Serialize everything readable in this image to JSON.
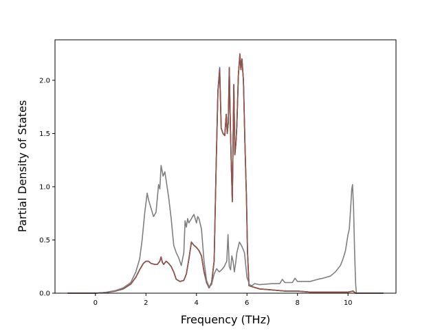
{
  "chart_data": {
    "type": "line",
    "xlabel": "Frequency (THz)",
    "ylabel": "Partial Density of States",
    "xlim": [
      -1.6,
      11.9
    ],
    "ylim": [
      0.0,
      2.38
    ],
    "xticks": [
      0,
      2,
      4,
      6,
      8,
      10
    ],
    "xtick_labels": [
      "0",
      "2",
      "4",
      "6",
      "8",
      "10"
    ],
    "yticks": [
      0.0,
      0.5,
      1.0,
      1.5,
      2.0
    ],
    "ytick_labels": [
      "0.0",
      "0.5",
      "1.0",
      "1.5",
      "2.0"
    ],
    "grid": false,
    "legend": "none",
    "series": [
      {
        "color": "#1f77b4",
        "points": [
          [
            -1.1,
            0
          ],
          [
            0,
            0
          ],
          [
            0.4,
            0.006
          ],
          [
            0.8,
            0.02
          ],
          [
            1.1,
            0.04
          ],
          [
            1.4,
            0.085
          ],
          [
            1.6,
            0.15
          ],
          [
            1.75,
            0.22
          ],
          [
            1.9,
            0.28
          ],
          [
            2.0,
            0.3
          ],
          [
            2.1,
            0.3
          ],
          [
            2.2,
            0.28
          ],
          [
            2.35,
            0.27
          ],
          [
            2.45,
            0.27
          ],
          [
            2.55,
            0.3
          ],
          [
            2.6,
            0.34
          ],
          [
            2.65,
            0.29
          ],
          [
            2.7,
            0.27
          ],
          [
            2.8,
            0.3
          ],
          [
            2.9,
            0.28
          ],
          [
            3.0,
            0.25
          ],
          [
            3.1,
            0.2
          ],
          [
            3.2,
            0.13
          ],
          [
            3.35,
            0.11
          ],
          [
            3.5,
            0.12
          ],
          [
            3.6,
            0.18
          ],
          [
            3.7,
            0.32
          ],
          [
            3.8,
            0.48
          ],
          [
            3.9,
            0.45
          ],
          [
            4.0,
            0.43
          ],
          [
            4.1,
            0.4
          ],
          [
            4.2,
            0.35
          ],
          [
            4.3,
            0.2
          ],
          [
            4.4,
            0.1
          ],
          [
            4.5,
            0.05
          ],
          [
            4.6,
            0.1
          ],
          [
            4.7,
            0.3
          ],
          [
            4.78,
            1.2
          ],
          [
            4.85,
            1.9
          ],
          [
            4.92,
            2.12
          ],
          [
            4.98,
            1.55
          ],
          [
            5.05,
            1.5
          ],
          [
            5.12,
            1.48
          ],
          [
            5.18,
            1.68
          ],
          [
            5.22,
            1.5
          ],
          [
            5.26,
            1.6
          ],
          [
            5.3,
            2.12
          ],
          [
            5.34,
            1.6
          ],
          [
            5.38,
            1.2
          ],
          [
            5.42,
            0.86
          ],
          [
            5.48,
            1.96
          ],
          [
            5.52,
            1.3
          ],
          [
            5.56,
            1.4
          ],
          [
            5.6,
            1.58
          ],
          [
            5.66,
            2.05
          ],
          [
            5.72,
            2.24
          ],
          [
            5.76,
            2.1
          ],
          [
            5.8,
            2.2
          ],
          [
            5.86,
            2.0
          ],
          [
            5.92,
            1.4
          ],
          [
            5.98,
            0.9
          ],
          [
            6.02,
            0.4
          ],
          [
            6.08,
            0.07
          ],
          [
            6.5,
            0.04
          ],
          [
            7.0,
            0.03
          ],
          [
            7.5,
            0.02
          ],
          [
            8.0,
            0.02
          ],
          [
            8.5,
            0.01
          ],
          [
            9.0,
            0.01
          ],
          [
            9.5,
            0.01
          ],
          [
            10.0,
            0.01
          ],
          [
            10.2,
            0.02
          ],
          [
            10.3,
            0
          ],
          [
            11.4,
            0
          ]
        ]
      },
      {
        "color": "#d62728",
        "points": [
          [
            -1.1,
            0
          ],
          [
            0,
            0
          ],
          [
            0.4,
            0.006
          ],
          [
            0.8,
            0.02
          ],
          [
            1.1,
            0.04
          ],
          [
            1.4,
            0.085
          ],
          [
            1.6,
            0.15
          ],
          [
            1.75,
            0.22
          ],
          [
            1.9,
            0.28
          ],
          [
            2.0,
            0.3
          ],
          [
            2.1,
            0.3
          ],
          [
            2.2,
            0.28
          ],
          [
            2.35,
            0.27
          ],
          [
            2.45,
            0.27
          ],
          [
            2.55,
            0.3
          ],
          [
            2.6,
            0.34
          ],
          [
            2.65,
            0.29
          ],
          [
            2.7,
            0.27
          ],
          [
            2.8,
            0.3
          ],
          [
            2.9,
            0.28
          ],
          [
            3.0,
            0.25
          ],
          [
            3.1,
            0.2
          ],
          [
            3.2,
            0.13
          ],
          [
            3.35,
            0.11
          ],
          [
            3.5,
            0.12
          ],
          [
            3.6,
            0.18
          ],
          [
            3.7,
            0.32
          ],
          [
            3.8,
            0.48
          ],
          [
            3.9,
            0.45
          ],
          [
            4.0,
            0.43
          ],
          [
            4.1,
            0.4
          ],
          [
            4.2,
            0.35
          ],
          [
            4.3,
            0.2
          ],
          [
            4.4,
            0.1
          ],
          [
            4.5,
            0.05
          ],
          [
            4.6,
            0.1
          ],
          [
            4.7,
            0.3
          ],
          [
            4.78,
            1.2
          ],
          [
            4.85,
            1.9
          ],
          [
            4.92,
            2.1
          ],
          [
            4.98,
            1.55
          ],
          [
            5.05,
            1.5
          ],
          [
            5.12,
            1.48
          ],
          [
            5.18,
            1.68
          ],
          [
            5.22,
            1.5
          ],
          [
            5.26,
            1.6
          ],
          [
            5.3,
            2.12
          ],
          [
            5.34,
            1.6
          ],
          [
            5.38,
            1.2
          ],
          [
            5.42,
            0.86
          ],
          [
            5.48,
            1.96
          ],
          [
            5.52,
            1.3
          ],
          [
            5.56,
            1.4
          ],
          [
            5.6,
            1.58
          ],
          [
            5.66,
            2.05
          ],
          [
            5.72,
            2.24
          ],
          [
            5.76,
            2.1
          ],
          [
            5.8,
            2.2
          ],
          [
            5.86,
            2.0
          ],
          [
            5.92,
            1.4
          ],
          [
            5.98,
            0.9
          ],
          [
            6.02,
            0.4
          ],
          [
            6.08,
            0.07
          ],
          [
            6.5,
            0.04
          ],
          [
            7.0,
            0.03
          ],
          [
            7.5,
            0.02
          ],
          [
            8.0,
            0.02
          ],
          [
            8.5,
            0.01
          ],
          [
            9.0,
            0.01
          ],
          [
            9.5,
            0.01
          ],
          [
            10.0,
            0.01
          ],
          [
            10.2,
            0.02
          ],
          [
            10.3,
            0
          ],
          [
            11.4,
            0
          ]
        ]
      },
      {
        "color": "#8c564b",
        "points": [
          [
            -1.1,
            0
          ],
          [
            0,
            0
          ],
          [
            0.4,
            0.006
          ],
          [
            0.8,
            0.02
          ],
          [
            1.1,
            0.04
          ],
          [
            1.4,
            0.085
          ],
          [
            1.6,
            0.15
          ],
          [
            1.75,
            0.22
          ],
          [
            1.9,
            0.28
          ],
          [
            2.0,
            0.3
          ],
          [
            2.1,
            0.3
          ],
          [
            2.2,
            0.28
          ],
          [
            2.35,
            0.27
          ],
          [
            2.45,
            0.27
          ],
          [
            2.55,
            0.3
          ],
          [
            2.6,
            0.34
          ],
          [
            2.65,
            0.29
          ],
          [
            2.7,
            0.27
          ],
          [
            2.8,
            0.3
          ],
          [
            2.9,
            0.28
          ],
          [
            3.0,
            0.25
          ],
          [
            3.1,
            0.2
          ],
          [
            3.2,
            0.13
          ],
          [
            3.35,
            0.11
          ],
          [
            3.5,
            0.12
          ],
          [
            3.6,
            0.18
          ],
          [
            3.7,
            0.32
          ],
          [
            3.8,
            0.48
          ],
          [
            3.9,
            0.45
          ],
          [
            4.0,
            0.43
          ],
          [
            4.1,
            0.4
          ],
          [
            4.2,
            0.35
          ],
          [
            4.3,
            0.2
          ],
          [
            4.4,
            0.1
          ],
          [
            4.5,
            0.05
          ],
          [
            4.6,
            0.1
          ],
          [
            4.7,
            0.3
          ],
          [
            4.78,
            1.2
          ],
          [
            4.85,
            1.9
          ],
          [
            4.92,
            2.08
          ],
          [
            4.98,
            1.55
          ],
          [
            5.05,
            1.5
          ],
          [
            5.12,
            1.48
          ],
          [
            5.18,
            1.68
          ],
          [
            5.22,
            1.5
          ],
          [
            5.26,
            1.6
          ],
          [
            5.3,
            2.12
          ],
          [
            5.34,
            1.6
          ],
          [
            5.38,
            1.2
          ],
          [
            5.42,
            0.86
          ],
          [
            5.48,
            1.96
          ],
          [
            5.52,
            1.3
          ],
          [
            5.56,
            1.4
          ],
          [
            5.6,
            1.58
          ],
          [
            5.66,
            2.05
          ],
          [
            5.72,
            2.25
          ],
          [
            5.76,
            2.1
          ],
          [
            5.8,
            2.2
          ],
          [
            5.86,
            2.0
          ],
          [
            5.92,
            1.4
          ],
          [
            5.98,
            0.9
          ],
          [
            6.02,
            0.4
          ],
          [
            6.08,
            0.07
          ],
          [
            6.5,
            0.04
          ],
          [
            7.0,
            0.03
          ],
          [
            7.5,
            0.02
          ],
          [
            8.0,
            0.02
          ],
          [
            8.5,
            0.01
          ],
          [
            9.0,
            0.01
          ],
          [
            9.5,
            0.01
          ],
          [
            10.0,
            0.01
          ],
          [
            10.2,
            0.02
          ],
          [
            10.3,
            0
          ],
          [
            11.4,
            0
          ]
        ]
      },
      {
        "color": "#7f7f7f",
        "points": [
          [
            -1.1,
            0
          ],
          [
            0,
            0
          ],
          [
            0.4,
            0.008
          ],
          [
            0.8,
            0.025
          ],
          [
            1.1,
            0.05
          ],
          [
            1.4,
            0.1
          ],
          [
            1.6,
            0.2
          ],
          [
            1.75,
            0.32
          ],
          [
            1.85,
            0.5
          ],
          [
            1.95,
            0.75
          ],
          [
            2.05,
            0.94
          ],
          [
            2.1,
            0.88
          ],
          [
            2.2,
            0.8
          ],
          [
            2.3,
            0.72
          ],
          [
            2.4,
            0.76
          ],
          [
            2.5,
            1.02
          ],
          [
            2.55,
            0.98
          ],
          [
            2.6,
            1.2
          ],
          [
            2.68,
            1.1
          ],
          [
            2.75,
            1.14
          ],
          [
            2.8,
            1.06
          ],
          [
            2.9,
            0.9
          ],
          [
            3.0,
            0.7
          ],
          [
            3.1,
            0.45
          ],
          [
            3.2,
            0.38
          ],
          [
            3.3,
            0.33
          ],
          [
            3.4,
            0.26
          ],
          [
            3.5,
            0.38
          ],
          [
            3.55,
            0.68
          ],
          [
            3.6,
            0.62
          ],
          [
            3.65,
            0.7
          ],
          [
            3.7,
            0.66
          ],
          [
            3.8,
            0.7
          ],
          [
            3.9,
            0.74
          ],
          [
            4.0,
            0.66
          ],
          [
            4.05,
            0.72
          ],
          [
            4.1,
            0.7
          ],
          [
            4.2,
            0.6
          ],
          [
            4.25,
            0.45
          ],
          [
            4.3,
            0.3
          ],
          [
            4.4,
            0.12
          ],
          [
            4.5,
            0.06
          ],
          [
            4.6,
            0.08
          ],
          [
            4.7,
            0.18
          ],
          [
            4.8,
            0.23
          ],
          [
            4.9,
            0.2
          ],
          [
            5.0,
            0.22
          ],
          [
            5.1,
            0.25
          ],
          [
            5.2,
            0.3
          ],
          [
            5.25,
            0.55
          ],
          [
            5.3,
            0.25
          ],
          [
            5.35,
            0.22
          ],
          [
            5.4,
            0.35
          ],
          [
            5.45,
            0.3
          ],
          [
            5.5,
            0.2
          ],
          [
            5.55,
            0.28
          ],
          [
            5.6,
            0.38
          ],
          [
            5.7,
            0.48
          ],
          [
            5.8,
            0.44
          ],
          [
            5.9,
            0.38
          ],
          [
            6.0,
            0.15
          ],
          [
            6.1,
            0.08
          ],
          [
            6.2,
            0.07
          ],
          [
            6.3,
            0.09
          ],
          [
            6.5,
            0.08
          ],
          [
            7.0,
            0.09
          ],
          [
            7.3,
            0.09
          ],
          [
            7.4,
            0.13
          ],
          [
            7.5,
            0.1
          ],
          [
            7.8,
            0.1
          ],
          [
            7.9,
            0.14
          ],
          [
            8.0,
            0.11
          ],
          [
            8.5,
            0.11
          ],
          [
            8.8,
            0.13
          ],
          [
            9.0,
            0.14
          ],
          [
            9.3,
            0.16
          ],
          [
            9.5,
            0.2
          ],
          [
            9.7,
            0.26
          ],
          [
            9.8,
            0.32
          ],
          [
            9.9,
            0.4
          ],
          [
            10.0,
            0.55
          ],
          [
            10.05,
            0.6
          ],
          [
            10.1,
            0.78
          ],
          [
            10.15,
            0.98
          ],
          [
            10.18,
            1.02
          ],
          [
            10.22,
            0.8
          ],
          [
            10.26,
            0.4
          ],
          [
            10.3,
            0.1
          ],
          [
            10.33,
            0
          ],
          [
            11.4,
            0
          ]
        ]
      }
    ]
  }
}
